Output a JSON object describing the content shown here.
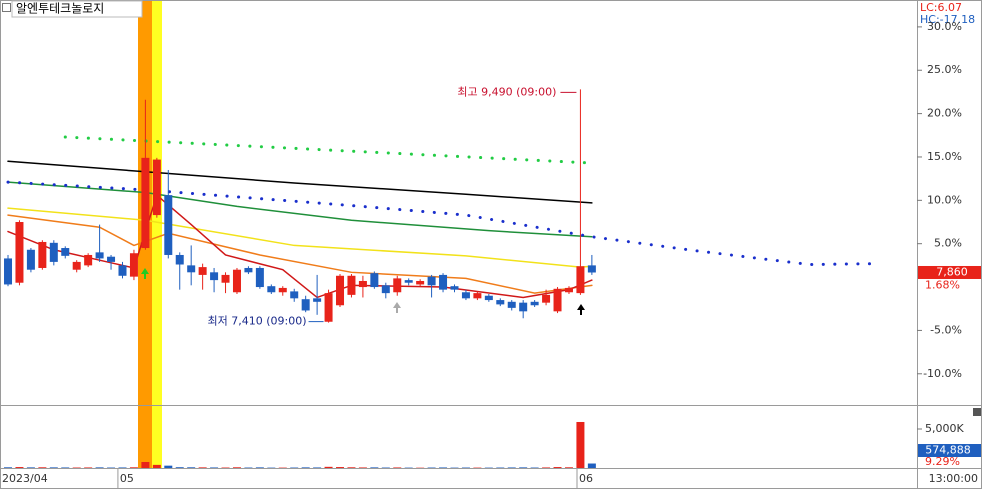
{
  "chart_data": [
    {
      "type": "candlestick",
      "title": "알엔투테크놀로지",
      "lc_label": "LC:6.07",
      "hc_label": "HC:-17.18",
      "high_note": "최고 9,490 (09:00)",
      "low_note": "최저 7,410 (09:00)",
      "last_price": "7,860",
      "last_change": "1.68%",
      "time_label": "13:00:00",
      "up_color": "#e8231a",
      "down_color": "#1f5fbf",
      "xlim": [
        -0.7,
        79.4
      ],
      "xticks": [
        {
          "value": -0.7,
          "label": "2023/04"
        },
        {
          "value": 9.6,
          "label": "05"
        },
        {
          "value": 49.7,
          "label": "06"
        }
      ],
      "ylim": [
        -13.6,
        33.1
      ],
      "yticks": [
        {
          "value": 30,
          "label": "30.0%"
        },
        {
          "value": 25,
          "label": "25.0%"
        },
        {
          "value": 20,
          "label": "20.0%"
        },
        {
          "value": 15,
          "label": "15.0%"
        },
        {
          "value": 10,
          "label": "10.0%"
        },
        {
          "value": 5,
          "label": "5.0%"
        },
        {
          "value": -5,
          "label": "-5.0%"
        },
        {
          "value": -10,
          "label": "-10.0%"
        }
      ],
      "open": [
        3.3,
        0.5,
        4.3,
        2.2,
        5.1,
        4.5,
        2.0,
        2.5,
        4.0,
        3.5,
        2.5,
        1.2,
        4.5,
        8.3,
        10.6,
        3.7,
        2.5,
        1.4,
        1.7,
        0.5,
        -0.6,
        2.2,
        2.2,
        0.1,
        -0.6,
        -0.5,
        -1.4,
        -1.3,
        -4.0,
        -2.1,
        -0.9,
        0.0,
        1.6,
        0.2,
        -0.6,
        0.8,
        0.3,
        1.2,
        1.4,
        0.1,
        -0.6,
        -1.3,
        -1.0,
        -1.5,
        -1.7,
        -1.8,
        -1.7,
        -1.8,
        -2.8,
        -0.6,
        -0.7,
        2.5
      ],
      "high": [
        3.7,
        7.7,
        4.5,
        5.4,
        5.4,
        4.7,
        3.1,
        3.9,
        7.2,
        3.7,
        2.9,
        4.3,
        21.6,
        14.9,
        13.5,
        4.0,
        4.8,
        2.7,
        2.2,
        1.7,
        2.2,
        2.4,
        2.4,
        0.3,
        0.1,
        -0.2,
        -1.0,
        1.4,
        -0.3,
        1.5,
        1.5,
        1.3,
        1.8,
        0.5,
        1.3,
        1.0,
        0.9,
        1.4,
        1.6,
        0.3,
        -0.3,
        -0.5,
        -0.8,
        -1.3,
        -1.5,
        -1.5,
        -1.5,
        -0.3,
        0.0,
        0.1,
        22.8,
        3.7
      ],
      "low": [
        0.1,
        0.2,
        1.7,
        2.0,
        2.5,
        3.3,
        1.7,
        2.3,
        2.9,
        2.0,
        1.0,
        0.8,
        4.3,
        8.0,
        3.3,
        -0.3,
        0.2,
        -0.3,
        -0.6,
        -0.7,
        -0.8,
        1.5,
        -0.2,
        -0.8,
        -1.0,
        -1.7,
        -2.9,
        -3.2,
        -4.1,
        -2.3,
        -1.2,
        -1.2,
        -0.2,
        -1.3,
        -1.0,
        0.2,
        0.1,
        -1.2,
        -0.6,
        -0.6,
        -1.5,
        -1.5,
        -1.7,
        -2.2,
        -2.7,
        -3.6,
        -2.3,
        -2.1,
        -3.0,
        -0.8,
        -0.9,
        1.4
      ],
      "close": [
        0.3,
        7.5,
        2.0,
        5.2,
        2.9,
        3.6,
        2.9,
        3.7,
        3.3,
        2.9,
        1.3,
        3.9,
        14.9,
        14.7,
        3.7,
        2.6,
        1.7,
        2.3,
        0.8,
        1.4,
        2.0,
        1.7,
        0.0,
        -0.6,
        -0.1,
        -1.3,
        -2.7,
        -1.7,
        -0.7,
        1.3,
        1.3,
        0.7,
        0.0,
        -0.7,
        1.0,
        0.5,
        0.7,
        0.2,
        -0.3,
        -0.3,
        -1.3,
        -0.7,
        -1.5,
        -2.0,
        -2.4,
        -2.8,
        -2.1,
        -0.9,
        -0.2,
        -0.1,
        2.4,
        1.68
      ],
      "lines": [
        {
          "color": "#000000",
          "style": "solid",
          "x": [
            0,
            12,
            25,
            40,
            51
          ],
          "values": [
            14.5,
            13.3,
            12.0,
            10.7,
            9.7
          ]
        },
        {
          "color": "#1f8f3a",
          "style": "solid",
          "x": [
            0,
            12,
            20,
            30,
            42,
            51
          ],
          "values": [
            12.1,
            10.9,
            9.3,
            7.7,
            6.5,
            5.8
          ]
        },
        {
          "color": "#f2e21a",
          "style": "solid",
          "x": [
            0,
            12,
            25,
            40,
            50,
            51
          ],
          "values": [
            9.1,
            7.7,
            4.8,
            3.6,
            2.3,
            2.4
          ]
        },
        {
          "color": "#f07c1a",
          "style": "solid",
          "x": [
            0,
            8,
            11,
            14,
            22,
            30,
            40,
            46,
            51
          ],
          "values": [
            8.3,
            6.9,
            4.8,
            6.2,
            3.7,
            1.7,
            1.0,
            -0.7,
            0.2
          ]
        },
        {
          "color": "#d01818",
          "style": "solid",
          "x": [
            0,
            4,
            8,
            11,
            13,
            16,
            19,
            24,
            27,
            30,
            38,
            45,
            49,
            51
          ],
          "values": [
            6.4,
            4.3,
            3.1,
            2.2,
            10.6,
            7.2,
            3.7,
            2.0,
            -1.2,
            0.2,
            0.0,
            -1.2,
            -0.3,
            0.8
          ]
        },
        {
          "color": "#22cc44",
          "style": "dotted",
          "x": [
            5,
            51
          ],
          "values": [
            17.3,
            14.3
          ]
        },
        {
          "color": "#1a2fcc",
          "style": "dotted",
          "x": [
            0,
            12,
            20,
            30,
            40,
            51,
            60,
            70,
            76
          ],
          "values": [
            12.1,
            11.2,
            10.4,
            9.4,
            8.3,
            5.8,
            4.2,
            2.6,
            2.7
          ]
        }
      ]
    },
    {
      "type": "volume",
      "ylim": [
        0,
        7950000
      ],
      "yticks": [
        {
          "value": 5000000,
          "label": "5,000K"
        }
      ],
      "last_volume": "574,888",
      "volume_change": "9.29%",
      "values": [
        90000,
        120000,
        80000,
        90000,
        80000,
        70000,
        60000,
        70000,
        80000,
        60000,
        70000,
        90000,
        770000,
        400000,
        300000,
        100000,
        90000,
        80000,
        70000,
        60000,
        90000,
        60000,
        80000,
        50000,
        50000,
        60000,
        80000,
        70000,
        150000,
        120000,
        90000,
        70000,
        80000,
        60000,
        70000,
        50000,
        40000,
        60000,
        70000,
        50000,
        60000,
        50000,
        50000,
        60000,
        70000,
        80000,
        60000,
        70000,
        120000,
        90000,
        5900000,
        574888
      ]
    }
  ]
}
